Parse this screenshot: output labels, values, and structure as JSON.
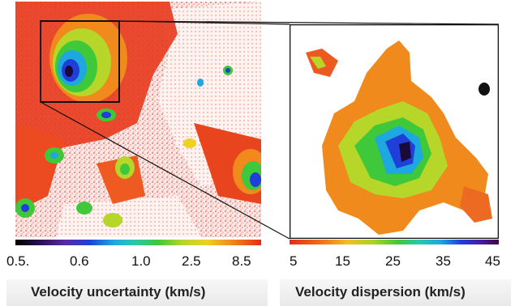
{
  "left_panel": {
    "colorbar_ticks": [
      "0.5.",
      "0.6",
      "1.0",
      "2.5",
      "8.5"
    ],
    "caption": "Velocity uncertainty (km/s)"
  },
  "right_panel": {
    "colorbar_ticks": [
      "5",
      "15",
      "25",
      "35",
      "45"
    ],
    "caption": "Velocity dispersion (km/s)"
  },
  "colors": {
    "red": "#e82a16",
    "orange": "#f08a1c",
    "yellow": "#f0d020",
    "green": "#3fc83a",
    "cyan": "#1fa7e0",
    "blue": "#1f3fd8",
    "dark": "#1a0a3a"
  }
}
